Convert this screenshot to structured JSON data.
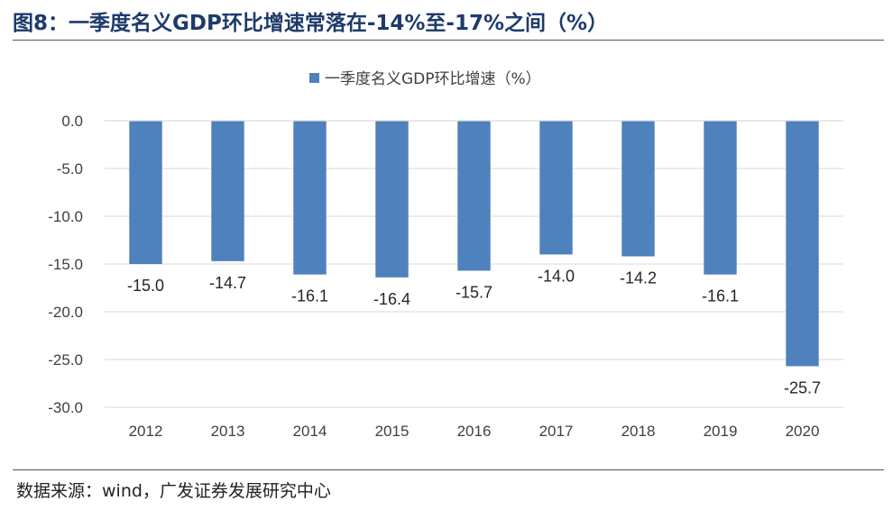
{
  "figure": {
    "title": "图8：一季度名义GDP环比增速常落在-14%至-17%之间（%）",
    "source": "数据来源：wind，广发证券发展研究中心"
  },
  "colors": {
    "bar": "#4f81bd",
    "title": "#1d3a6b",
    "grid": "#d9d9d9"
  },
  "chart_data": {
    "type": "bar",
    "title": "",
    "xlabel": "",
    "ylabel": "",
    "categories": [
      "2012",
      "2013",
      "2014",
      "2015",
      "2016",
      "2017",
      "2018",
      "2019",
      "2020"
    ],
    "series": [
      {
        "name": "一季度名义GDP环比增速（%）",
        "values": [
          -15.0,
          -14.7,
          -16.1,
          -16.4,
          -15.7,
          -14.0,
          -14.2,
          -16.1,
          -25.7
        ]
      }
    ],
    "ylim": [
      -30,
      0
    ],
    "yticks": [
      0,
      -5,
      -10,
      -15,
      -20,
      -25,
      -30
    ],
    "ytick_labels": [
      "0.0",
      "-5.0",
      "-10.0",
      "-15.0",
      "-20.0",
      "-25.0",
      "-30.0"
    ],
    "data_labels": [
      "-15.0",
      "-14.7",
      "-16.1",
      "-16.4",
      "-15.7",
      "-14.0",
      "-14.2",
      "-16.1",
      "-25.7"
    ],
    "legend": {
      "position": "top-center",
      "entries": [
        "一季度名义GDP环比增速（%）"
      ]
    },
    "grid": "y-major"
  }
}
